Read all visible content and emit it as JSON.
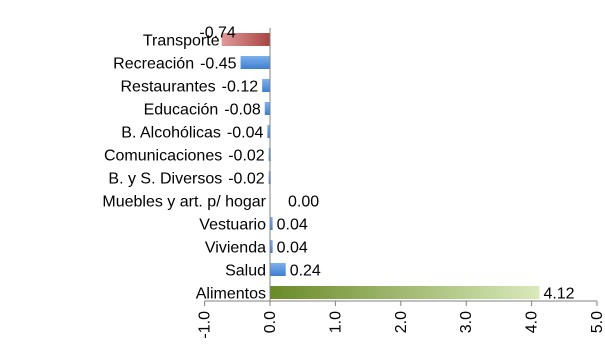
{
  "chart_data": {
    "type": "bar",
    "orientation": "horizontal",
    "categories": [
      "Transporte",
      "Recreación",
      "Restaurantes",
      "Educación",
      "B. Alcohólicas",
      "Comunicaciones",
      "B. y S. Diversos",
      "Muebles y art. p/ hogar",
      "Vestuario",
      "Vivienda",
      "Salud",
      "Alimentos"
    ],
    "values": [
      -0.74,
      -0.45,
      -0.12,
      -0.08,
      -0.04,
      -0.02,
      -0.02,
      0.0,
      0.04,
      0.04,
      0.24,
      4.12
    ],
    "value_labels": [
      "-0.74",
      "-0.45",
      "-0.12",
      "-0.08",
      "-0.04",
      "-0.02",
      "-0.02",
      "0.00",
      "0.04",
      "0.04",
      "0.24",
      "4.12"
    ],
    "xlim": [
      -1.0,
      5.0
    ],
    "xticks": [
      -1.0,
      0.0,
      1.0,
      2.0,
      3.0,
      4.0,
      5.0
    ],
    "xtick_labels": [
      "-1.0",
      "0.0",
      "1.0",
      "2.0",
      "3.0",
      "4.0",
      "5.0"
    ],
    "grid": false,
    "colors": {
      "negative_default": "#4f8fd8",
      "positive_default": "#6aa0e0",
      "transporte": "#b25555",
      "alimentos_start": "#6f8f2e",
      "alimentos_end": "#d5e6b3"
    }
  }
}
